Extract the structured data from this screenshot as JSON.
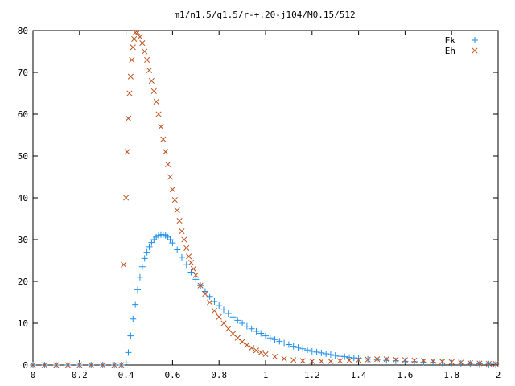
{
  "chart_data": {
    "type": "scatter",
    "title": "m1/n1.5/q1.5/r-+.20-j104/M0.15/512",
    "xlabel": "",
    "ylabel": "",
    "xlim": [
      0,
      2
    ],
    "ylim": [
      0,
      80
    ],
    "xticks": [
      0,
      0.2,
      0.4,
      0.6,
      0.8,
      1,
      1.2,
      1.4,
      1.6,
      1.8,
      2
    ],
    "xtick_labels": [
      "0",
      "0.2",
      "0.4",
      "0.6",
      "0.8",
      "1",
      "1.2",
      "1.4",
      "1.6",
      "1.8",
      "2"
    ],
    "yticks": [
      0,
      10,
      20,
      30,
      40,
      50,
      60,
      70,
      80
    ],
    "ytick_labels": [
      "0",
      "10",
      "20",
      "30",
      "40",
      "50",
      "60",
      "70",
      "80"
    ],
    "grid": false,
    "legend_position": "top-right",
    "series": [
      {
        "name": "Ek",
        "marker": "plus",
        "color": "#1f8fea",
        "points": [
          [
            0.0,
            0
          ],
          [
            0.05,
            0
          ],
          [
            0.1,
            0
          ],
          [
            0.15,
            0
          ],
          [
            0.2,
            0
          ],
          [
            0.25,
            0
          ],
          [
            0.3,
            0
          ],
          [
            0.35,
            0
          ],
          [
            0.38,
            0
          ],
          [
            0.4,
            0.5
          ],
          [
            0.41,
            3
          ],
          [
            0.42,
            7
          ],
          [
            0.43,
            11
          ],
          [
            0.44,
            14.5
          ],
          [
            0.45,
            18
          ],
          [
            0.46,
            21
          ],
          [
            0.47,
            23.5
          ],
          [
            0.48,
            25.5
          ],
          [
            0.49,
            27
          ],
          [
            0.5,
            28.3
          ],
          [
            0.51,
            29.3
          ],
          [
            0.52,
            30
          ],
          [
            0.53,
            30.6
          ],
          [
            0.54,
            31
          ],
          [
            0.55,
            31.2
          ],
          [
            0.56,
            31.2
          ],
          [
            0.57,
            31
          ],
          [
            0.58,
            30.6
          ],
          [
            0.59,
            30
          ],
          [
            0.6,
            29.2
          ],
          [
            0.62,
            27.6
          ],
          [
            0.64,
            25.8
          ],
          [
            0.66,
            24
          ],
          [
            0.68,
            22.2
          ],
          [
            0.7,
            20.5
          ],
          [
            0.72,
            19
          ],
          [
            0.74,
            17.6
          ],
          [
            0.76,
            16.4
          ],
          [
            0.78,
            15.2
          ],
          [
            0.8,
            14.2
          ],
          [
            0.82,
            13.2
          ],
          [
            0.84,
            12.3
          ],
          [
            0.86,
            11.5
          ],
          [
            0.88,
            10.7
          ],
          [
            0.9,
            10
          ],
          [
            0.92,
            9.3
          ],
          [
            0.94,
            8.7
          ],
          [
            0.96,
            8.1
          ],
          [
            0.98,
            7.6
          ],
          [
            1.0,
            7
          ],
          [
            1.02,
            6.5
          ],
          [
            1.04,
            6.1
          ],
          [
            1.06,
            5.7
          ],
          [
            1.08,
            5.3
          ],
          [
            1.1,
            4.9
          ],
          [
            1.12,
            4.5
          ],
          [
            1.14,
            4.2
          ],
          [
            1.16,
            3.9
          ],
          [
            1.18,
            3.6
          ],
          [
            1.2,
            3.3
          ],
          [
            1.22,
            3.1
          ],
          [
            1.24,
            2.9
          ],
          [
            1.26,
            2.7
          ],
          [
            1.28,
            2.5
          ],
          [
            1.3,
            2.3
          ],
          [
            1.32,
            2.1
          ],
          [
            1.34,
            2
          ],
          [
            1.36,
            1.8
          ],
          [
            1.38,
            1.7
          ],
          [
            1.4,
            1.6
          ],
          [
            1.44,
            1.4
          ],
          [
            1.48,
            1.2
          ],
          [
            1.52,
            1.1
          ],
          [
            1.56,
            1
          ],
          [
            1.6,
            0.9
          ],
          [
            1.64,
            0.8
          ],
          [
            1.68,
            0.7
          ],
          [
            1.72,
            0.6
          ],
          [
            1.76,
            0.5
          ],
          [
            1.8,
            0.45
          ],
          [
            1.84,
            0.4
          ],
          [
            1.88,
            0.35
          ],
          [
            1.92,
            0.3
          ],
          [
            1.96,
            0.25
          ],
          [
            1.99,
            0.2
          ]
        ]
      },
      {
        "name": "Eh",
        "marker": "cross",
        "color": "#c0501e",
        "points": [
          [
            0.0,
            0
          ],
          [
            0.05,
            0
          ],
          [
            0.1,
            0
          ],
          [
            0.15,
            0
          ],
          [
            0.2,
            0
          ],
          [
            0.25,
            0
          ],
          [
            0.3,
            0
          ],
          [
            0.35,
            0
          ],
          [
            0.38,
            0
          ],
          [
            0.39,
            24
          ],
          [
            0.4,
            40
          ],
          [
            0.405,
            51
          ],
          [
            0.41,
            59
          ],
          [
            0.415,
            65
          ],
          [
            0.42,
            69
          ],
          [
            0.425,
            73
          ],
          [
            0.43,
            76
          ],
          [
            0.435,
            78
          ],
          [
            0.44,
            79.5
          ],
          [
            0.45,
            79.5
          ],
          [
            0.46,
            78.5
          ],
          [
            0.47,
            77
          ],
          [
            0.48,
            75
          ],
          [
            0.49,
            73
          ],
          [
            0.5,
            70.5
          ],
          [
            0.51,
            68
          ],
          [
            0.52,
            65.5
          ],
          [
            0.53,
            63
          ],
          [
            0.54,
            60
          ],
          [
            0.55,
            57
          ],
          [
            0.56,
            54
          ],
          [
            0.57,
            51
          ],
          [
            0.58,
            48
          ],
          [
            0.59,
            45
          ],
          [
            0.6,
            42
          ],
          [
            0.61,
            39.5
          ],
          [
            0.62,
            37
          ],
          [
            0.63,
            34.5
          ],
          [
            0.64,
            32
          ],
          [
            0.65,
            30
          ],
          [
            0.66,
            28
          ],
          [
            0.67,
            26
          ],
          [
            0.68,
            24.5
          ],
          [
            0.69,
            23
          ],
          [
            0.7,
            21.5
          ],
          [
            0.72,
            19
          ],
          [
            0.74,
            17
          ],
          [
            0.76,
            15
          ],
          [
            0.78,
            13
          ],
          [
            0.8,
            11.5
          ],
          [
            0.82,
            10
          ],
          [
            0.84,
            8.7
          ],
          [
            0.86,
            7.5
          ],
          [
            0.88,
            6.5
          ],
          [
            0.9,
            5.6
          ],
          [
            0.92,
            4.8
          ],
          [
            0.94,
            4.1
          ],
          [
            0.96,
            3.5
          ],
          [
            0.98,
            3
          ],
          [
            1.0,
            2.6
          ],
          [
            1.04,
            2
          ],
          [
            1.08,
            1.5
          ],
          [
            1.12,
            1.2
          ],
          [
            1.16,
            1
          ],
          [
            1.2,
            0.9
          ],
          [
            1.24,
            0.9
          ],
          [
            1.28,
            0.9
          ],
          [
            1.32,
            1
          ],
          [
            1.36,
            1.1
          ],
          [
            1.4,
            1.2
          ],
          [
            1.44,
            1.3
          ],
          [
            1.48,
            1.4
          ],
          [
            1.52,
            1.4
          ],
          [
            1.56,
            1.3
          ],
          [
            1.6,
            1.2
          ],
          [
            1.64,
            1.1
          ],
          [
            1.68,
            1
          ],
          [
            1.72,
            0.9
          ],
          [
            1.76,
            0.8
          ],
          [
            1.8,
            0.7
          ],
          [
            1.84,
            0.6
          ],
          [
            1.88,
            0.5
          ],
          [
            1.92,
            0.4
          ],
          [
            1.96,
            0.3
          ],
          [
            1.99,
            0.25
          ]
        ]
      }
    ]
  }
}
